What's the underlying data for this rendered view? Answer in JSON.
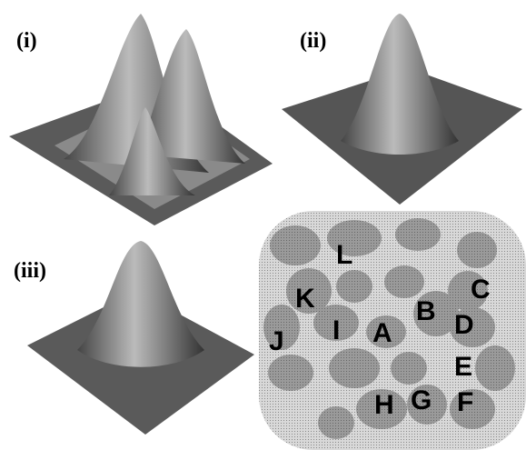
{
  "panels": [
    {
      "label": "(i)"
    },
    {
      "label": "(ii)"
    },
    {
      "label": "(iii)"
    }
  ],
  "blob_labels": [
    "L",
    "K",
    "C",
    "B",
    "D",
    "J",
    "I",
    "A",
    "E",
    "H",
    "G",
    "F"
  ]
}
